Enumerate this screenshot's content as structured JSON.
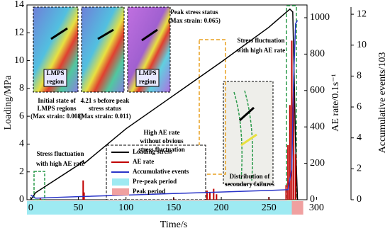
{
  "chart_data": {
    "type": "line",
    "xlabel": "Time/s",
    "ylabel": "Loading/MPa",
    "y2label": "AE rate/0.1s⁻¹",
    "y3label": "Accumulative events/103",
    "xlim": [
      -4,
      290
    ],
    "xticks": [
      0,
      50,
      100,
      150,
      200,
      250,
      300
    ],
    "ylim": [
      0,
      14
    ],
    "yticks": [
      0,
      2,
      4,
      6,
      8,
      10,
      12,
      14
    ],
    "y2lim": [
      0,
      1070
    ],
    "y2ticks": [
      0,
      200,
      400,
      600,
      800,
      1000
    ],
    "y3lim": [
      0,
      12.6
    ],
    "y3ticks": [
      0,
      2,
      4,
      6,
      8,
      10,
      12
    ],
    "series": [
      {
        "name": "Loading stress",
        "color": "#000000",
        "type": "line",
        "axis": "y",
        "x": [
          0,
          5,
          50,
          55,
          56,
          100,
          150,
          200,
          250,
          272,
          275,
          278,
          280
        ],
        "values": [
          0,
          0.5,
          2.5,
          2.8,
          2.6,
          5.1,
          7.5,
          9.9,
          12.4,
          13.7,
          13.5,
          4,
          0
        ]
      },
      {
        "name": "AE rate",
        "color": "#c00000",
        "type": "bar",
        "axis": "y2",
        "x": [
          10,
          55,
          56,
          150,
          185,
          188,
          192,
          195,
          250,
          268,
          270,
          272,
          274,
          276,
          278
        ],
        "values": [
          8,
          106,
          40,
          10,
          50,
          40,
          60,
          30,
          15,
          80,
          300,
          520,
          874,
          600,
          250
        ]
      },
      {
        "name": "Accumulative events",
        "color": "#2a35c8",
        "type": "line",
        "axis": "y3",
        "x": [
          0,
          5,
          50,
          100,
          150,
          200,
          250,
          270,
          274,
          276,
          278,
          280
        ],
        "values": [
          0.3,
          0.1,
          0.2,
          0.3,
          0.4,
          0.5,
          0.6,
          0.65,
          2,
          8,
          11.4,
          11.6
        ]
      }
    ],
    "periods": [
      {
        "name": "Pre-peak period",
        "color": "#9eeaf2",
        "start": -4,
        "end": 274
      },
      {
        "name": "Peak period",
        "color": "#f0a0a0",
        "start": 274,
        "end": 286
      }
    ],
    "annotations": [
      "Peak stress status",
      "(Max strain: 0.065)",
      "Initial state of",
      "LMPS regions",
      "(Max strain: 0.008)",
      "4.21 s before peak",
      "stress status",
      "(Max strain: 0.011)",
      "LMPS",
      "region",
      "LMPS",
      "region",
      "Stress fluctuation",
      "with high AE rate",
      "High AE rate",
      "without obvious",
      "stress fluctuation",
      "Stress fluctuation",
      "with high AE rate",
      "Distribution of",
      "secondary failures"
    ]
  }
}
